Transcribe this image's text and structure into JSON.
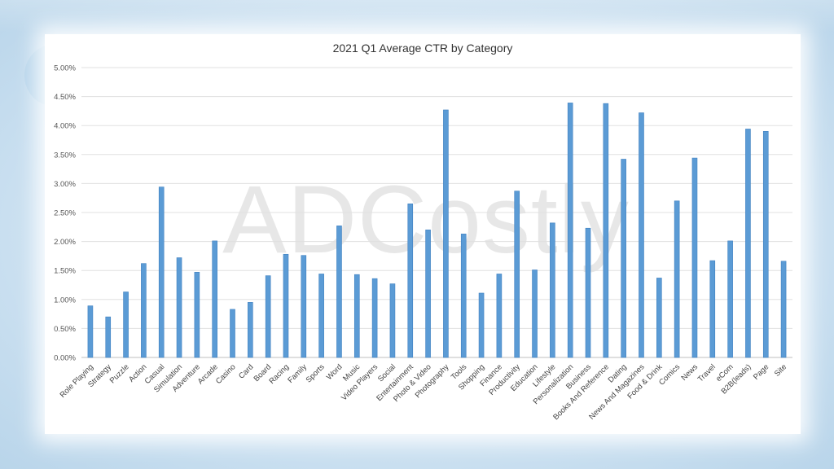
{
  "chart_data": {
    "type": "bar",
    "title": "2021 Q1 Average CTR by Category",
    "xlabel": "",
    "ylabel": "",
    "ylim": [
      0,
      5
    ],
    "yticks": [
      "0.00%",
      "0.50%",
      "1.00%",
      "1.50%",
      "2.00%",
      "2.50%",
      "3.00%",
      "3.50%",
      "4.00%",
      "4.50%",
      "5.00%"
    ],
    "grid": true,
    "watermark": "ADCostly",
    "bar_color": "#5b9bd5",
    "categories": [
      "Role Playing",
      "Strategy",
      "Puzzle",
      "Action",
      "Casual",
      "Simulation",
      "Adventure",
      "Arcade",
      "Casino",
      "Card",
      "Board",
      "Racing",
      "Family",
      "Sports",
      "Word",
      "Music",
      "Video Players",
      "Social",
      "Entertainment",
      "Photo & Video",
      "Photography",
      "Tools",
      "Shopping",
      "Finance",
      "Productivity",
      "Education",
      "Lifestyle",
      "Personalization",
      "Business",
      "Books And Reference",
      "Dating",
      "News And Magazines",
      "Food & Drink",
      "Comics",
      "News",
      "Travel",
      "eCom",
      "B2B(leads)",
      "Page",
      "Site"
    ],
    "values": [
      0.89,
      0.7,
      1.13,
      1.62,
      2.94,
      1.72,
      1.47,
      2.01,
      0.83,
      0.95,
      1.41,
      1.78,
      1.76,
      1.44,
      2.27,
      1.43,
      1.36,
      1.27,
      2.65,
      2.2,
      4.27,
      2.13,
      1.11,
      1.44,
      2.87,
      1.51,
      2.32,
      4.39,
      2.23,
      4.38,
      3.42,
      4.22,
      1.37,
      2.7,
      3.44,
      1.67,
      2.01,
      3.94,
      3.9,
      1.66
    ],
    "unit": "%"
  }
}
